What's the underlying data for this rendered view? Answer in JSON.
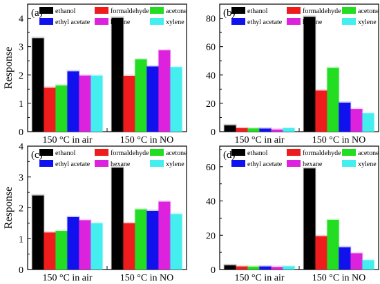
{
  "chart_data": [
    {
      "type": "bar",
      "panel_label": "(a)",
      "ylabel": "Response",
      "ylim": [
        0,
        4.5
      ],
      "yticks": [
        0,
        1,
        2,
        3,
        4
      ],
      "categories": [
        "150 °C in air",
        "150 °C in NO"
      ],
      "series": [
        {
          "name": "ethanol",
          "color": "#000000",
          "values": [
            3.3,
            4.02
          ]
        },
        {
          "name": "formaldehyde",
          "color": "#ee1c1c",
          "values": [
            1.55,
            1.97
          ]
        },
        {
          "name": "acetone",
          "color": "#22dd22",
          "values": [
            1.63,
            2.55
          ]
        },
        {
          "name": "ethyl acetate",
          "color": "#1111ee",
          "values": [
            2.13,
            2.3
          ]
        },
        {
          "name": "hexane",
          "color": "#dd22dd",
          "values": [
            1.98,
            2.87
          ]
        },
        {
          "name": "xylene",
          "color": "#44eeee",
          "values": [
            1.98,
            2.28
          ]
        }
      ]
    },
    {
      "type": "bar",
      "panel_label": "(b)",
      "ylabel": "",
      "ylim": [
        0,
        90
      ],
      "yticks": [
        0,
        20,
        40,
        60,
        80
      ],
      "categories": [
        "150 °C in air",
        "150 °C in NO"
      ],
      "series": [
        {
          "name": "ethanol",
          "color": "#000000",
          "values": [
            4.5,
            81
          ]
        },
        {
          "name": "formaldehyde",
          "color": "#ee1c1c",
          "values": [
            2.5,
            29
          ]
        },
        {
          "name": "acetone",
          "color": "#22dd22",
          "values": [
            2.3,
            45
          ]
        },
        {
          "name": "ethyl acetate",
          "color": "#1111ee",
          "values": [
            2.2,
            20.5
          ]
        },
        {
          "name": "hexane",
          "color": "#dd22dd",
          "values": [
            1.5,
            16
          ]
        },
        {
          "name": "xylene",
          "color": "#44eeee",
          "values": [
            2.5,
            13
          ]
        }
      ]
    },
    {
      "type": "bar",
      "panel_label": "(c)",
      "ylabel": "Response",
      "ylim": [
        0,
        4
      ],
      "yticks": [
        0,
        1,
        2,
        3,
        4
      ],
      "categories": [
        "150 °C in air",
        "150 °C in NO"
      ],
      "series": [
        {
          "name": "ethanol",
          "color": "#000000",
          "values": [
            2.4,
            3.3
          ]
        },
        {
          "name": "formaldehyde",
          "color": "#ee1c1c",
          "values": [
            1.2,
            1.5
          ]
        },
        {
          "name": "acetone",
          "color": "#22dd22",
          "values": [
            1.25,
            1.95
          ]
        },
        {
          "name": "ethyl acetate",
          "color": "#1111ee",
          "values": [
            1.7,
            1.9
          ]
        },
        {
          "name": "hexane",
          "color": "#dd22dd",
          "values": [
            1.6,
            2.2
          ]
        },
        {
          "name": "xylene",
          "color": "#44eeee",
          "values": [
            1.5,
            1.8
          ]
        }
      ]
    },
    {
      "type": "bar",
      "panel_label": "(d)",
      "ylabel": "",
      "ylim": [
        0,
        72
      ],
      "yticks": [
        0,
        20,
        40,
        60
      ],
      "categories": [
        "150 °C in air",
        "150 °C in NO"
      ],
      "series": [
        {
          "name": "ethanol",
          "color": "#000000",
          "values": [
            2.5,
            59
          ]
        },
        {
          "name": "formaldehyde",
          "color": "#ee1c1c",
          "values": [
            1.8,
            19.5
          ]
        },
        {
          "name": "acetone",
          "color": "#22dd22",
          "values": [
            1.7,
            29
          ]
        },
        {
          "name": "ethyl acetate",
          "color": "#1111ee",
          "values": [
            1.8,
            13
          ]
        },
        {
          "name": "hexane",
          "color": "#dd22dd",
          "values": [
            1.5,
            9.5
          ]
        },
        {
          "name": "xylene",
          "color": "#44eeee",
          "values": [
            1.9,
            5.5
          ]
        }
      ]
    }
  ]
}
